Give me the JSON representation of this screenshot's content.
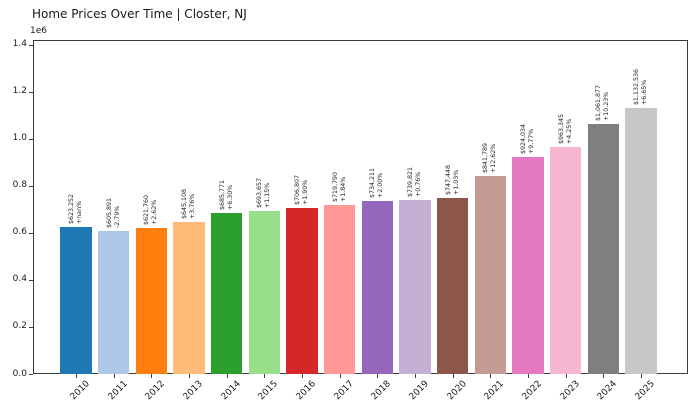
{
  "chart_data": {
    "type": "bar",
    "title": "Home Prices Over Time | Closter, NJ",
    "y_offset_text": "1e6",
    "xlabel": "",
    "ylabel": "",
    "grid": false,
    "legend": null,
    "ylim": [
      0,
      1400000
    ],
    "ytick_labels": [
      "0.0",
      "0.2",
      "0.4",
      "0.6",
      "0.8",
      "1.0",
      "1.2",
      "1.4"
    ],
    "ytick_values": [
      0,
      200000,
      400000,
      600000,
      800000,
      1000000,
      1200000,
      1400000
    ],
    "categories": [
      "2010",
      "2011",
      "2012",
      "2013",
      "2014",
      "2015",
      "2016",
      "2017",
      "2018",
      "2019",
      "2020",
      "2021",
      "2022",
      "2023",
      "2024",
      "2025"
    ],
    "values": [
      623252,
      605891,
      621760,
      645108,
      685771,
      693657,
      706807,
      719790,
      734211,
      739821,
      747448,
      841789,
      924034,
      963345,
      1061877,
      1132536
    ],
    "bar_value_labels": [
      "$623,252",
      "$605,891",
      "$621,760",
      "$645,108",
      "$685,771",
      "$693,657",
      "$706,807",
      "$719,790",
      "$734,211",
      "$739,821",
      "$747,448",
      "$841,789",
      "$924,034",
      "$963,345",
      "$1,061,877",
      "$1,132,536"
    ],
    "bar_change_labels": [
      "+nan%",
      "-2.79%",
      "+2.62%",
      "+3.76%",
      "+6.30%",
      "+1.15%",
      "+1.90%",
      "+1.84%",
      "+2.00%",
      "+0.76%",
      "+1.03%",
      "+12.62%",
      "+9.77%",
      "+4.25%",
      "+10.23%",
      "+6.65%"
    ],
    "colors": [
      "#1f77b4",
      "#aec7e8",
      "#ff7f0e",
      "#ffbb78",
      "#2ca02c",
      "#98df8a",
      "#d62728",
      "#ff9896",
      "#9467bd",
      "#c5b0d5",
      "#8c564b",
      "#c49c94",
      "#e377c2",
      "#f7b6d2",
      "#7f7f7f",
      "#c7c7c7"
    ],
    "axis_color": "#3b3b3b",
    "text_color": "#1a1a1a"
  }
}
